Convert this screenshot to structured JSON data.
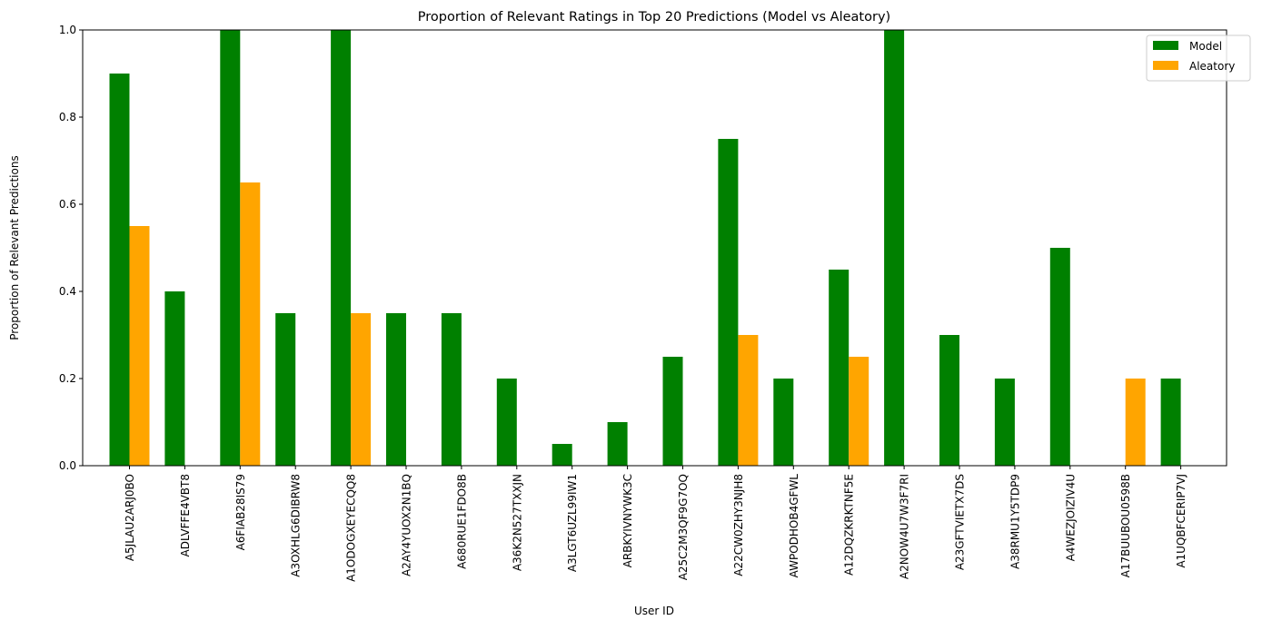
{
  "chart_data": {
    "type": "bar",
    "title": "Proportion of Relevant Ratings in Top 20 Predictions (Model vs Aleatory)",
    "xlabel": "User ID",
    "ylabel": "Proportion of Relevant Predictions",
    "ylim": [
      0,
      1.0
    ],
    "yticks": [
      "0.0",
      "0.2",
      "0.4",
      "0.6",
      "0.8",
      "1.0"
    ],
    "grid": false,
    "legend_position": "top-right",
    "categories": [
      "A5JLAU2ARJ0BO",
      "ADLVFFE4VBT8",
      "A6FIAB28IS79",
      "A3OXHLG6DIBRW8",
      "A1ODOGXEYECQQ8",
      "A2AY4YUOX2N1BQ",
      "A680RUE1FDO8B",
      "A36K2N527TXXJN",
      "A3LGT6UZL99IW1",
      "ARBKYIVNYWK3C",
      "A25C2M3QF9G7OQ",
      "A22CW0ZHY3NJH8",
      "AWPODHOB4GFWL",
      "A12DQZKRKTNF5E",
      "A2NOW4U7W3F7RI",
      "A23GFTVIETX7DS",
      "A38RMU1Y5TDP9",
      "A4WEZJOIZIV4U",
      "A17BUUBOU0598B",
      "A1UQBFCERIP7VJ"
    ],
    "series": [
      {
        "name": "Model",
        "color": "#008000",
        "values": [
          0.9,
          0.4,
          1.0,
          0.35,
          1.0,
          0.35,
          0.35,
          0.2,
          0.05,
          0.1,
          0.25,
          0.75,
          0.2,
          0.45,
          1.0,
          0.3,
          0.2,
          0.5,
          0.0,
          0.2
        ]
      },
      {
        "name": "Aleatory",
        "color": "#ffa500",
        "values": [
          0.55,
          0.0,
          0.65,
          0.0,
          0.35,
          0.0,
          0.0,
          0.0,
          0.0,
          0.0,
          0.0,
          0.3,
          0.0,
          0.25,
          0.0,
          0.0,
          0.0,
          0.0,
          0.2,
          0.0
        ]
      }
    ]
  }
}
